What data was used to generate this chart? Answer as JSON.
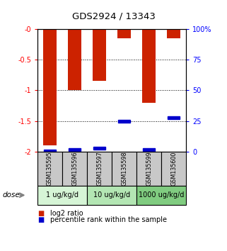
{
  "title": "GDS2924 / 13343",
  "samples": [
    "GSM135595",
    "GSM135596",
    "GSM135597",
    "GSM135598",
    "GSM135599",
    "GSM135600"
  ],
  "log2_ratio": [
    -1.9,
    -1.0,
    -0.85,
    -0.15,
    -1.2,
    -0.15
  ],
  "percentile_rank": [
    1.0,
    2.0,
    3.0,
    25.0,
    2.0,
    28.0
  ],
  "bar_color": "#cc2200",
  "marker_color": "#0000cc",
  "ylim_left": [
    -2.0,
    0.0
  ],
  "ylim_right": [
    0,
    100
  ],
  "yticks_left": [
    0,
    -0.5,
    -1.0,
    -1.5,
    -2.0
  ],
  "yticks_left_labels": [
    "-0",
    "-0.5",
    "-1",
    "-1.5",
    "-2"
  ],
  "yticks_right": [
    0,
    25,
    50,
    75,
    100
  ],
  "yticks_right_labels": [
    "0",
    "25",
    "50",
    "75",
    "100%"
  ],
  "dose_groups": [
    {
      "label": "1 ug/kg/d",
      "start": 0,
      "end": 2,
      "color": "#d6f5d6"
    },
    {
      "label": "10 ug/kg/d",
      "start": 2,
      "end": 4,
      "color": "#b3e6b3"
    },
    {
      "label": "1000 ug/kg/d",
      "start": 4,
      "end": 6,
      "color": "#80cc80"
    }
  ],
  "dose_label": "dose",
  "legend_red": "log2 ratio",
  "legend_blue": "percentile rank within the sample",
  "bar_width": 0.55,
  "background_color": "#ffffff",
  "plot_bg": "#ffffff",
  "sample_box_color": "#c8c8c8",
  "dose_box_colors": [
    "#d6f5d6",
    "#b3e6b3",
    "#80cc80"
  ]
}
